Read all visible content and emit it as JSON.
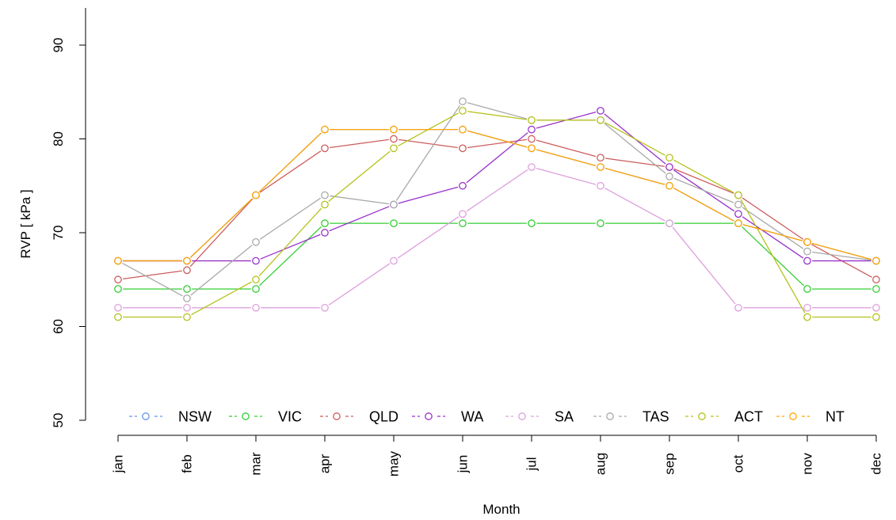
{
  "chart_data": {
    "type": "line",
    "xlabel": "Month",
    "ylabel": "RVP [ kPa ]",
    "ylim": [
      50,
      94
    ],
    "yticks": [
      50,
      60,
      70,
      80,
      90
    ],
    "categories": [
      "jan",
      "feb",
      "mar",
      "apr",
      "may",
      "jun",
      "jul",
      "aug",
      "sep",
      "oct",
      "nov",
      "dec"
    ],
    "legend_position": "bottom",
    "grid": false,
    "series": [
      {
        "name": "NSW",
        "color": "#6495ED",
        "values": [
          67,
          67,
          74,
          81,
          81,
          81,
          79,
          77,
          75,
          71,
          69,
          67
        ]
      },
      {
        "name": "VIC",
        "color": "#32CD32",
        "values": [
          64,
          64,
          64,
          71,
          71,
          71,
          71,
          71,
          71,
          71,
          64,
          64
        ]
      },
      {
        "name": "QLD",
        "color": "#CD5C5C",
        "values": [
          65,
          66,
          74,
          79,
          80,
          79,
          80,
          78,
          77,
          74,
          69,
          65
        ]
      },
      {
        "name": "WA",
        "color": "#9932CC",
        "values": [
          67,
          67,
          67,
          70,
          73,
          75,
          81,
          83,
          77,
          72,
          67,
          67
        ]
      },
      {
        "name": "SA",
        "color": "#DDA0DD",
        "values": [
          62,
          62,
          62,
          62,
          67,
          72,
          77,
          75,
          71,
          62,
          62,
          62
        ]
      },
      {
        "name": "TAS",
        "color": "#A9A9A9",
        "values": [
          67,
          63,
          69,
          74,
          73,
          84,
          82,
          82,
          76,
          73,
          68,
          67
        ]
      },
      {
        "name": "ACT",
        "color": "#B5C21A",
        "values": [
          61,
          61,
          65,
          73,
          79,
          83,
          82,
          82,
          78,
          74,
          61,
          61
        ]
      },
      {
        "name": "NT",
        "color": "#FFA500",
        "values": [
          67,
          67,
          74,
          81,
          81,
          81,
          79,
          77,
          75,
          71,
          69,
          67
        ]
      }
    ]
  }
}
